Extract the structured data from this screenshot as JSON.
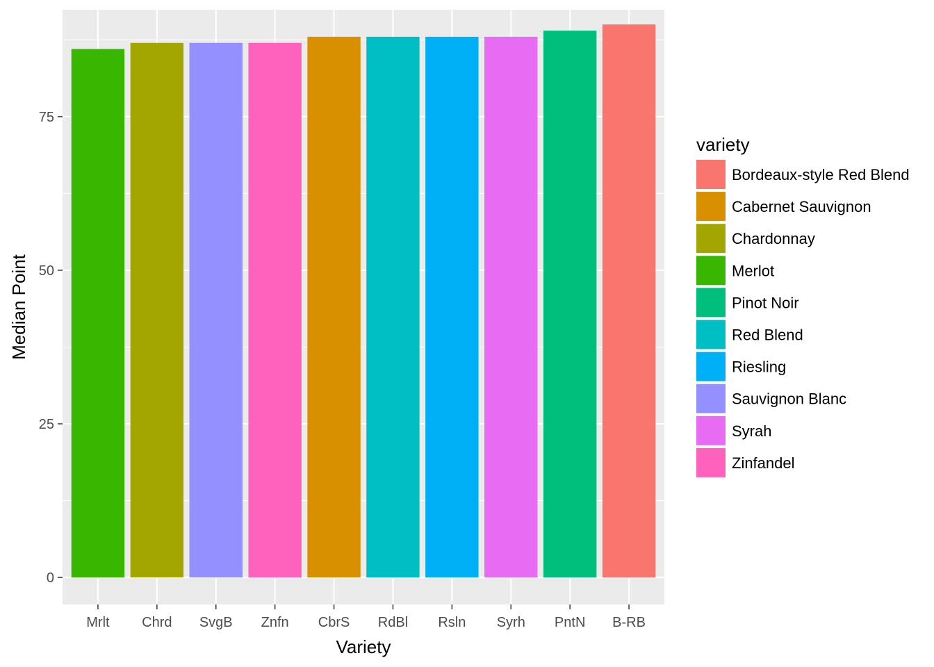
{
  "chart_data": {
    "type": "bar",
    "title": "",
    "xlabel": "Variety",
    "ylabel": "Median Point",
    "ylim": [
      -4.4,
      92.4
    ],
    "yticks": [
      0,
      25,
      50,
      75
    ],
    "grid": true,
    "categories": [
      "Mrlt",
      "Chrd",
      "SvgB",
      "Znfn",
      "CbrS",
      "RdBl",
      "Rsln",
      "Syrh",
      "PntN",
      "B-RB"
    ],
    "values": [
      86,
      87,
      87,
      87,
      88,
      88,
      88,
      88,
      89,
      90
    ],
    "bar_colors": [
      "#39B600",
      "#A3A500",
      "#9590FF",
      "#FF62BC",
      "#D89000",
      "#00BFC4",
      "#00B0F6",
      "#E76BF3",
      "#00BF7D",
      "#F8766D"
    ],
    "legend": {
      "title": "variety",
      "position": "right",
      "items": [
        {
          "label": "Bordeaux-style Red Blend",
          "color": "#F8766D"
        },
        {
          "label": "Cabernet Sauvignon",
          "color": "#D89000"
        },
        {
          "label": "Chardonnay",
          "color": "#A3A500"
        },
        {
          "label": "Merlot",
          "color": "#39B600"
        },
        {
          "label": "Pinot Noir",
          "color": "#00BF7D"
        },
        {
          "label": "Red Blend",
          "color": "#00BFC4"
        },
        {
          "label": "Riesling",
          "color": "#00B0F6"
        },
        {
          "label": "Sauvignon Blanc",
          "color": "#9590FF"
        },
        {
          "label": "Syrah",
          "color": "#E76BF3"
        },
        {
          "label": "Zinfandel",
          "color": "#FF62BC"
        }
      ]
    }
  }
}
